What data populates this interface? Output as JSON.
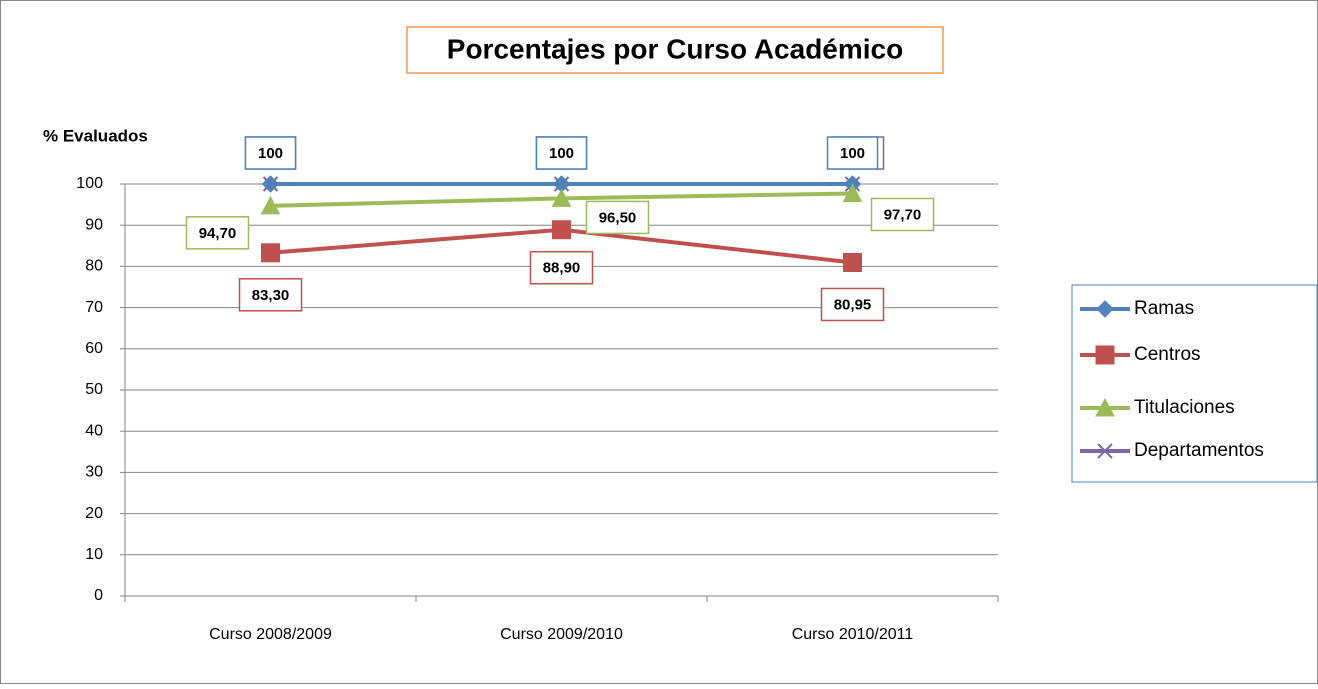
{
  "chart_data": {
    "type": "line",
    "title": "Porcentajes por Curso Académico",
    "y_label": "% Evaluados",
    "categories": [
      "Curso 2008/2009",
      "Curso 2009/2010",
      "Curso 2010/2011"
    ],
    "series": [
      {
        "name": "Ramas",
        "color": "#4f81bd",
        "marker": "diamond",
        "values": [
          100,
          100,
          100
        ]
      },
      {
        "name": "Centros",
        "color": "#c0504d",
        "marker": "square",
        "values": [
          83.3,
          88.9,
          80.95
        ],
        "value_labels": [
          "83,30",
          "88,90",
          "80,95"
        ]
      },
      {
        "name": "Titulaciones",
        "color": "#9bbb59",
        "marker": "triangle",
        "values": [
          94.7,
          96.5,
          97.7
        ],
        "value_labels": [
          "94,70",
          "96,50",
          "97,70"
        ]
      },
      {
        "name": "Departamentos",
        "color": "#8064a2",
        "marker": "x",
        "values": [
          100,
          100,
          100
        ]
      }
    ],
    "ylim": [
      0,
      100
    ],
    "yticks": [
      0,
      10,
      20,
      30,
      40,
      50,
      60,
      70,
      80,
      90,
      100
    ],
    "grid": true,
    "legend": "right"
  }
}
